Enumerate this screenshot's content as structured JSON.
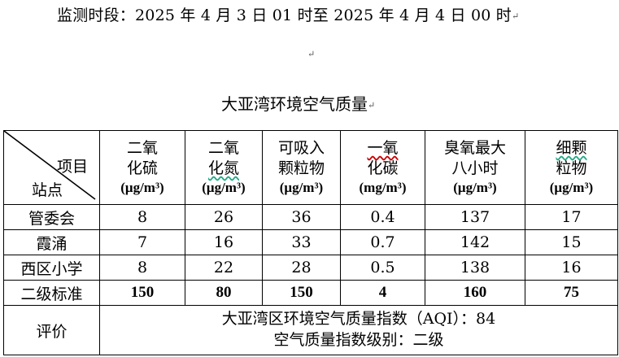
{
  "period": "监测时段：2025 年 4 月 3 日 01 时至 2025 年 4 月 4 日 00 时",
  "title": "大亚湾环境空气质量",
  "corner": {
    "item": "项目",
    "station": "站点"
  },
  "columns": [
    {
      "line1": "二氧",
      "line2": "化硫",
      "unit": "(μg/m³)"
    },
    {
      "line1": "二氧",
      "line2": "化氮",
      "unit": "(μg/m³)"
    },
    {
      "line1": "可吸入",
      "line2": "颗粒物",
      "unit": "(μg/m³)"
    },
    {
      "line1": "一氧",
      "line2": "化碳",
      "unit": "(mg/m³)"
    },
    {
      "line1": "臭氧最大",
      "line2": "八小时",
      "unit": "(μg/m³)"
    },
    {
      "line1": "细颗",
      "line2": "粒物",
      "unit": "(μg/m³)"
    }
  ],
  "rows": [
    {
      "station": "管委会",
      "values": [
        "8",
        "26",
        "36",
        "0.4",
        "137",
        "17"
      ]
    },
    {
      "station": "霞涌",
      "values": [
        "7",
        "16",
        "33",
        "0.7",
        "142",
        "15"
      ]
    },
    {
      "station": "西区小学",
      "values": [
        "8",
        "22",
        "28",
        "0.5",
        "138",
        "16"
      ]
    },
    {
      "station": "二级标准",
      "values": [
        "150",
        "80",
        "150",
        "4",
        "160",
        "75"
      ]
    }
  ],
  "evaluation": {
    "label": "评价",
    "line1": "大亚湾区环境空气质量指数（AQI）：84",
    "line2": "空气质量指数级别：二级"
  },
  "paragraph_mark": "↵"
}
